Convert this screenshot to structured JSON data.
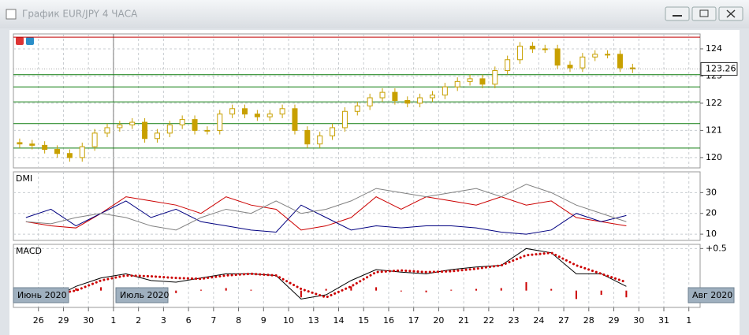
{
  "window": {
    "title": "График EUR/JPY  4 ЧАСА"
  },
  "period_labels": [
    "Июнь 2020",
    "Июль 2020",
    "Авг 2020"
  ],
  "xlim": [
    0,
    54.9
  ],
  "xticks": [
    {
      "value": 2,
      "label": "26"
    },
    {
      "value": 4,
      "label": "29"
    },
    {
      "value": 6,
      "label": "30"
    },
    {
      "value": 8,
      "label": "1"
    },
    {
      "value": 10,
      "label": "2"
    },
    {
      "value": 12,
      "label": "3"
    },
    {
      "value": 14,
      "label": "6"
    },
    {
      "value": 16,
      "label": "7"
    },
    {
      "value": 18,
      "label": "8"
    },
    {
      "value": 20,
      "label": "9"
    },
    {
      "value": 22,
      "label": "10"
    },
    {
      "value": 24,
      "label": "13"
    },
    {
      "value": 26,
      "label": "14"
    },
    {
      "value": 28,
      "label": "15"
    },
    {
      "value": 30,
      "label": "16"
    },
    {
      "value": 32,
      "label": "17"
    },
    {
      "value": 34,
      "label": "20"
    },
    {
      "value": 36,
      "label": "21"
    },
    {
      "value": 38,
      "label": "22"
    },
    {
      "value": 40,
      "label": "23"
    },
    {
      "value": 42,
      "label": "24"
    },
    {
      "value": 44,
      "label": "27"
    },
    {
      "value": 46,
      "label": "28"
    },
    {
      "value": 48,
      "label": "29"
    },
    {
      "value": 50,
      "label": "30"
    },
    {
      "value": 52,
      "label": "31"
    },
    {
      "value": 54,
      "label": "1"
    }
  ],
  "chart_data": [
    {
      "type": "candlestick",
      "color": "#c8a000",
      "grid": true,
      "open": [
        120.55,
        120.5,
        120.45,
        120.3,
        120.15,
        120.0,
        120.4,
        120.9,
        121.1,
        121.2,
        121.3,
        120.7,
        120.9,
        121.2,
        121.4,
        121.0,
        121.0,
        121.6,
        121.8,
        121.6,
        121.5,
        121.6,
        121.8,
        121.0,
        120.5,
        120.8,
        121.1,
        121.7,
        121.9,
        122.2,
        122.4,
        122.1,
        122.0,
        122.2,
        122.3,
        122.6,
        122.8,
        122.9,
        122.7,
        123.2,
        123.6,
        124.1,
        124.0,
        124.0,
        123.4,
        123.3,
        123.7,
        123.8,
        123.8,
        123.3
      ],
      "high": [
        120.7,
        120.65,
        120.6,
        120.45,
        120.3,
        120.55,
        121.05,
        121.25,
        121.35,
        121.45,
        121.45,
        121.05,
        121.35,
        121.55,
        121.55,
        121.15,
        121.75,
        121.95,
        121.95,
        121.75,
        121.75,
        121.95,
        121.95,
        121.15,
        120.95,
        121.25,
        121.85,
        122.05,
        122.35,
        122.55,
        122.55,
        122.25,
        122.35,
        122.45,
        122.75,
        122.95,
        123.05,
        123.05,
        123.35,
        123.75,
        124.25,
        124.25,
        124.15,
        124.15,
        123.55,
        123.85,
        123.95,
        123.95,
        123.95,
        123.45
      ],
      "low": [
        120.35,
        120.3,
        120.15,
        120.0,
        119.85,
        119.85,
        120.25,
        120.75,
        120.95,
        121.05,
        120.55,
        120.55,
        120.75,
        121.05,
        120.85,
        120.85,
        120.85,
        121.45,
        121.45,
        121.35,
        121.35,
        121.45,
        120.85,
        120.35,
        120.35,
        120.65,
        120.95,
        121.55,
        121.75,
        122.05,
        121.95,
        121.85,
        121.85,
        122.05,
        122.15,
        122.45,
        122.65,
        122.55,
        122.55,
        123.05,
        123.45,
        123.85,
        123.85,
        123.25,
        123.15,
        123.15,
        123.55,
        123.65,
        123.15,
        123.11
      ],
      "close": [
        120.5,
        120.45,
        120.3,
        120.15,
        120.0,
        120.4,
        120.9,
        121.1,
        121.2,
        121.3,
        120.7,
        120.9,
        121.2,
        121.4,
        121.0,
        121.0,
        121.6,
        121.8,
        121.6,
        121.5,
        121.6,
        121.8,
        121.0,
        120.5,
        120.8,
        121.1,
        121.7,
        121.9,
        122.2,
        122.4,
        122.1,
        122.0,
        122.2,
        122.3,
        122.6,
        122.8,
        122.9,
        122.7,
        123.2,
        123.6,
        124.1,
        124.0,
        124.0,
        123.4,
        123.3,
        123.7,
        123.8,
        123.8,
        123.3,
        123.26
      ],
      "last_price": 123.26,
      "levels": [
        {
          "value": 124.43,
          "color": "#c00000"
        },
        {
          "value": 123.05,
          "color": "#0a7a0a"
        },
        {
          "value": 122.6,
          "color": "#0a7a0a"
        },
        {
          "value": 122.05,
          "color": "#0a7a0a"
        },
        {
          "value": 121.25,
          "color": "#0a7a0a"
        },
        {
          "value": 120.35,
          "color": "#0a7a0a"
        }
      ],
      "ylim": [
        119.62,
        124.55
      ],
      "yticks": [
        120,
        121,
        122,
        123,
        124
      ]
    },
    {
      "type": "line",
      "title": "DMI",
      "grid": true,
      "x": [
        1,
        3,
        5,
        7,
        9,
        11,
        13,
        15,
        17,
        19,
        21,
        23,
        25,
        27,
        29,
        31,
        33,
        35,
        37,
        39,
        41,
        43,
        45,
        47,
        49
      ],
      "series": [
        {
          "color": "#cc0000",
          "values": [
            16,
            14,
            13,
            20,
            28,
            26,
            24,
            20,
            28,
            24,
            22,
            12,
            14,
            18,
            28,
            22,
            28,
            26,
            24,
            28,
            24,
            26,
            18,
            16,
            14
          ]
        },
        {
          "color": "#000080",
          "values": [
            18,
            22,
            14,
            20,
            26,
            18,
            22,
            16,
            14,
            12,
            11,
            24,
            18,
            12,
            14,
            13,
            14,
            14,
            13,
            11,
            10,
            12,
            20,
            16,
            19
          ]
        },
        {
          "color": "#808080",
          "values": [
            16,
            15,
            18,
            20,
            18,
            14,
            12,
            18,
            22,
            20,
            26,
            20,
            22,
            26,
            32,
            30,
            28,
            30,
            32,
            28,
            34,
            30,
            24,
            20,
            16
          ]
        }
      ],
      "ylim": [
        7,
        40
      ],
      "yticks": [
        10,
        20,
        30
      ]
    },
    {
      "type": "macd",
      "title": "MACD",
      "grid": true,
      "x": [
        1,
        3,
        5,
        7,
        9,
        11,
        13,
        15,
        17,
        19,
        21,
        23,
        25,
        27,
        29,
        31,
        33,
        35,
        37,
        39,
        41,
        43,
        45,
        47,
        49
      ],
      "series": [
        {
          "style": "histogram",
          "color": "#cc0000",
          "values": [
            0,
            -0.02,
            0.03,
            0.04,
            0.02,
            -0.02,
            -0.03,
            0.01,
            0.03,
            0.01,
            0,
            -0.08,
            0.02,
            0.05,
            0.04,
            -0.01,
            -0.02,
            0.01,
            0.02,
            0.03,
            0.1,
            0.02,
            -0.1,
            -0.05,
            -0.08
          ]
        },
        {
          "style": "line",
          "color": "#000000",
          "values": [
            -0.05,
            -0.1,
            0.05,
            0.15,
            0.2,
            0.12,
            0.1,
            0.15,
            0.2,
            0.2,
            0.18,
            -0.1,
            -0.05,
            0.12,
            0.25,
            0.22,
            0.2,
            0.25,
            0.28,
            0.3,
            0.5,
            0.45,
            0.2,
            0.2,
            0.05
          ]
        },
        {
          "style": "dots",
          "color": "#cc0000",
          "values": [
            -0.05,
            -0.05,
            0,
            0.12,
            0.18,
            0.17,
            0.15,
            0.14,
            0.18,
            0.2,
            0.18,
            0.02,
            -0.08,
            0.05,
            0.22,
            0.24,
            0.22,
            0.23,
            0.26,
            0.3,
            0.42,
            0.45,
            0.3,
            0.2,
            0.1
          ]
        }
      ],
      "ylim": [
        -0.2,
        0.55
      ],
      "yticks": [
        {
          "value": 0.5,
          "label": "+0.5"
        }
      ]
    }
  ]
}
